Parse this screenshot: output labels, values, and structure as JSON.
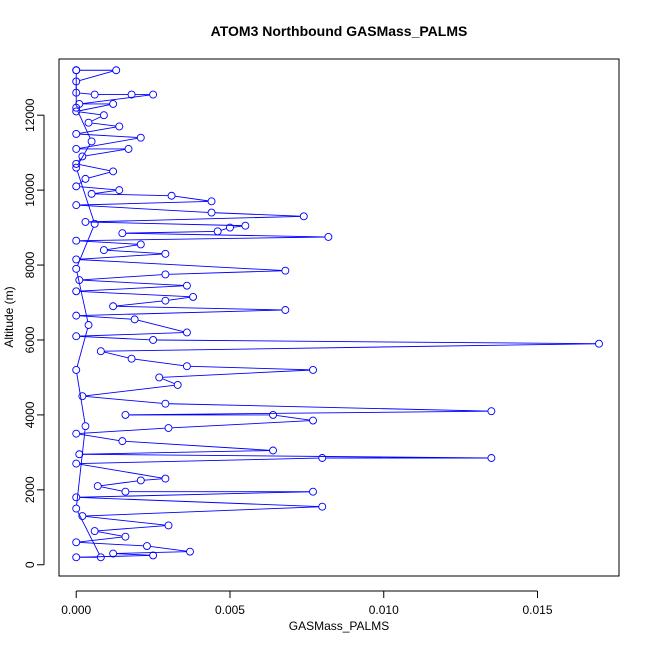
{
  "chart_data": {
    "type": "line",
    "title": "ATOM3 Northbound GASMass_PALMS",
    "xlabel": "GASMass_PALMS",
    "ylabel": "Altitude (m)",
    "xlim": [
      -0.00056,
      0.01765
    ],
    "ylim": [
      -300,
      13500
    ],
    "x_ticks": [
      0.0,
      0.005,
      0.01,
      0.015
    ],
    "x_tick_labels": [
      "0.000",
      "0.005",
      "0.010",
      "0.015"
    ],
    "y_ticks": [
      0,
      2000,
      4000,
      6000,
      8000,
      10000,
      12000
    ],
    "y_tick_labels": [
      "0",
      "2000",
      "4000",
      "6000",
      "8000",
      "10000",
      "12000"
    ],
    "grid": false,
    "series": [
      {
        "color": "#0000ff",
        "marker": "open-circle",
        "points": [
          [
            0.0,
            13200
          ],
          [
            0.0013,
            13200
          ],
          [
            0.0,
            12900
          ],
          [
            0.0,
            12600
          ],
          [
            0.0006,
            12550
          ],
          [
            0.0018,
            12550
          ],
          [
            0.0025,
            12550
          ],
          [
            0.0001,
            12300
          ],
          [
            0.0012,
            12300
          ],
          [
            0.0,
            12100
          ],
          [
            0.0009,
            12000
          ],
          [
            0.0004,
            11800
          ],
          [
            0.0014,
            11700
          ],
          [
            0.0,
            11500
          ],
          [
            0.0021,
            11400
          ],
          [
            0.0,
            11100
          ],
          [
            0.0017,
            11100
          ],
          [
            0.0002,
            10900
          ],
          [
            0.0,
            10700
          ],
          [
            0.0012,
            10500
          ],
          [
            0.0003,
            10300
          ],
          [
            0.0,
            10100
          ],
          [
            0.0014,
            10000
          ],
          [
            0.0005,
            9900
          ],
          [
            0.0031,
            9850
          ],
          [
            0.0044,
            9700
          ],
          [
            0.0,
            9600
          ],
          [
            0.0044,
            9400
          ],
          [
            0.0074,
            9300
          ],
          [
            0.0003,
            9150
          ],
          [
            0.0055,
            9050
          ],
          [
            0.005,
            9000
          ],
          [
            0.0046,
            8900
          ],
          [
            0.0015,
            8850
          ],
          [
            0.0082,
            8750
          ],
          [
            0.0,
            8650
          ],
          [
            0.0021,
            8550
          ],
          [
            0.0009,
            8400
          ],
          [
            0.0029,
            8300
          ],
          [
            0.0,
            8150
          ],
          [
            0.0068,
            7850
          ],
          [
            0.0029,
            7750
          ],
          [
            0.0001,
            7600
          ],
          [
            0.0036,
            7450
          ],
          [
            0.0,
            7300
          ],
          [
            0.0038,
            7150
          ],
          [
            0.0029,
            7050
          ],
          [
            0.0012,
            6900
          ],
          [
            0.0068,
            6800
          ],
          [
            0.0,
            6650
          ],
          [
            0.0019,
            6550
          ],
          [
            0.0036,
            6200
          ],
          [
            0.0,
            6100
          ],
          [
            0.0025,
            6000
          ],
          [
            0.017,
            5900
          ],
          [
            0.0008,
            5700
          ],
          [
            0.0018,
            5500
          ],
          [
            0.0036,
            5300
          ],
          [
            0.0077,
            5200
          ],
          [
            0.0027,
            5000
          ],
          [
            0.0033,
            4800
          ],
          [
            0.0002,
            4500
          ],
          [
            0.0029,
            4300
          ],
          [
            0.0135,
            4100
          ],
          [
            0.0016,
            4000
          ],
          [
            0.0064,
            4000
          ],
          [
            0.0077,
            3850
          ],
          [
            0.003,
            3650
          ],
          [
            0.0,
            3500
          ],
          [
            0.0015,
            3300
          ],
          [
            0.0064,
            3050
          ],
          [
            0.0001,
            2950
          ],
          [
            0.0135,
            2850
          ],
          [
            0.008,
            2850
          ],
          [
            0.0,
            2700
          ],
          [
            0.0029,
            2300
          ],
          [
            0.0021,
            2250
          ],
          [
            0.0007,
            2100
          ],
          [
            0.0016,
            1950
          ],
          [
            0.0077,
            1950
          ],
          [
            0.0,
            1800
          ],
          [
            0.008,
            1550
          ],
          [
            0.0002,
            1300
          ],
          [
            0.003,
            1050
          ],
          [
            0.0006,
            900
          ],
          [
            0.0016,
            750
          ],
          [
            0.0,
            600
          ],
          [
            0.0023,
            500
          ],
          [
            0.0037,
            350
          ],
          [
            0.0012,
            300
          ],
          [
            0.0025,
            250
          ],
          [
            0.0,
            200
          ],
          [
            0.0008,
            200
          ],
          [
            0.0,
            1500
          ],
          [
            0.0003,
            3700
          ],
          [
            0.0,
            5200
          ],
          [
            0.0004,
            6400
          ],
          [
            0.0,
            7900
          ],
          [
            0.0006,
            9100
          ],
          [
            0.0,
            10600
          ],
          [
            0.0005,
            11300
          ],
          [
            0.0,
            12200
          ],
          [
            0.0,
            13200
          ]
        ]
      }
    ]
  }
}
